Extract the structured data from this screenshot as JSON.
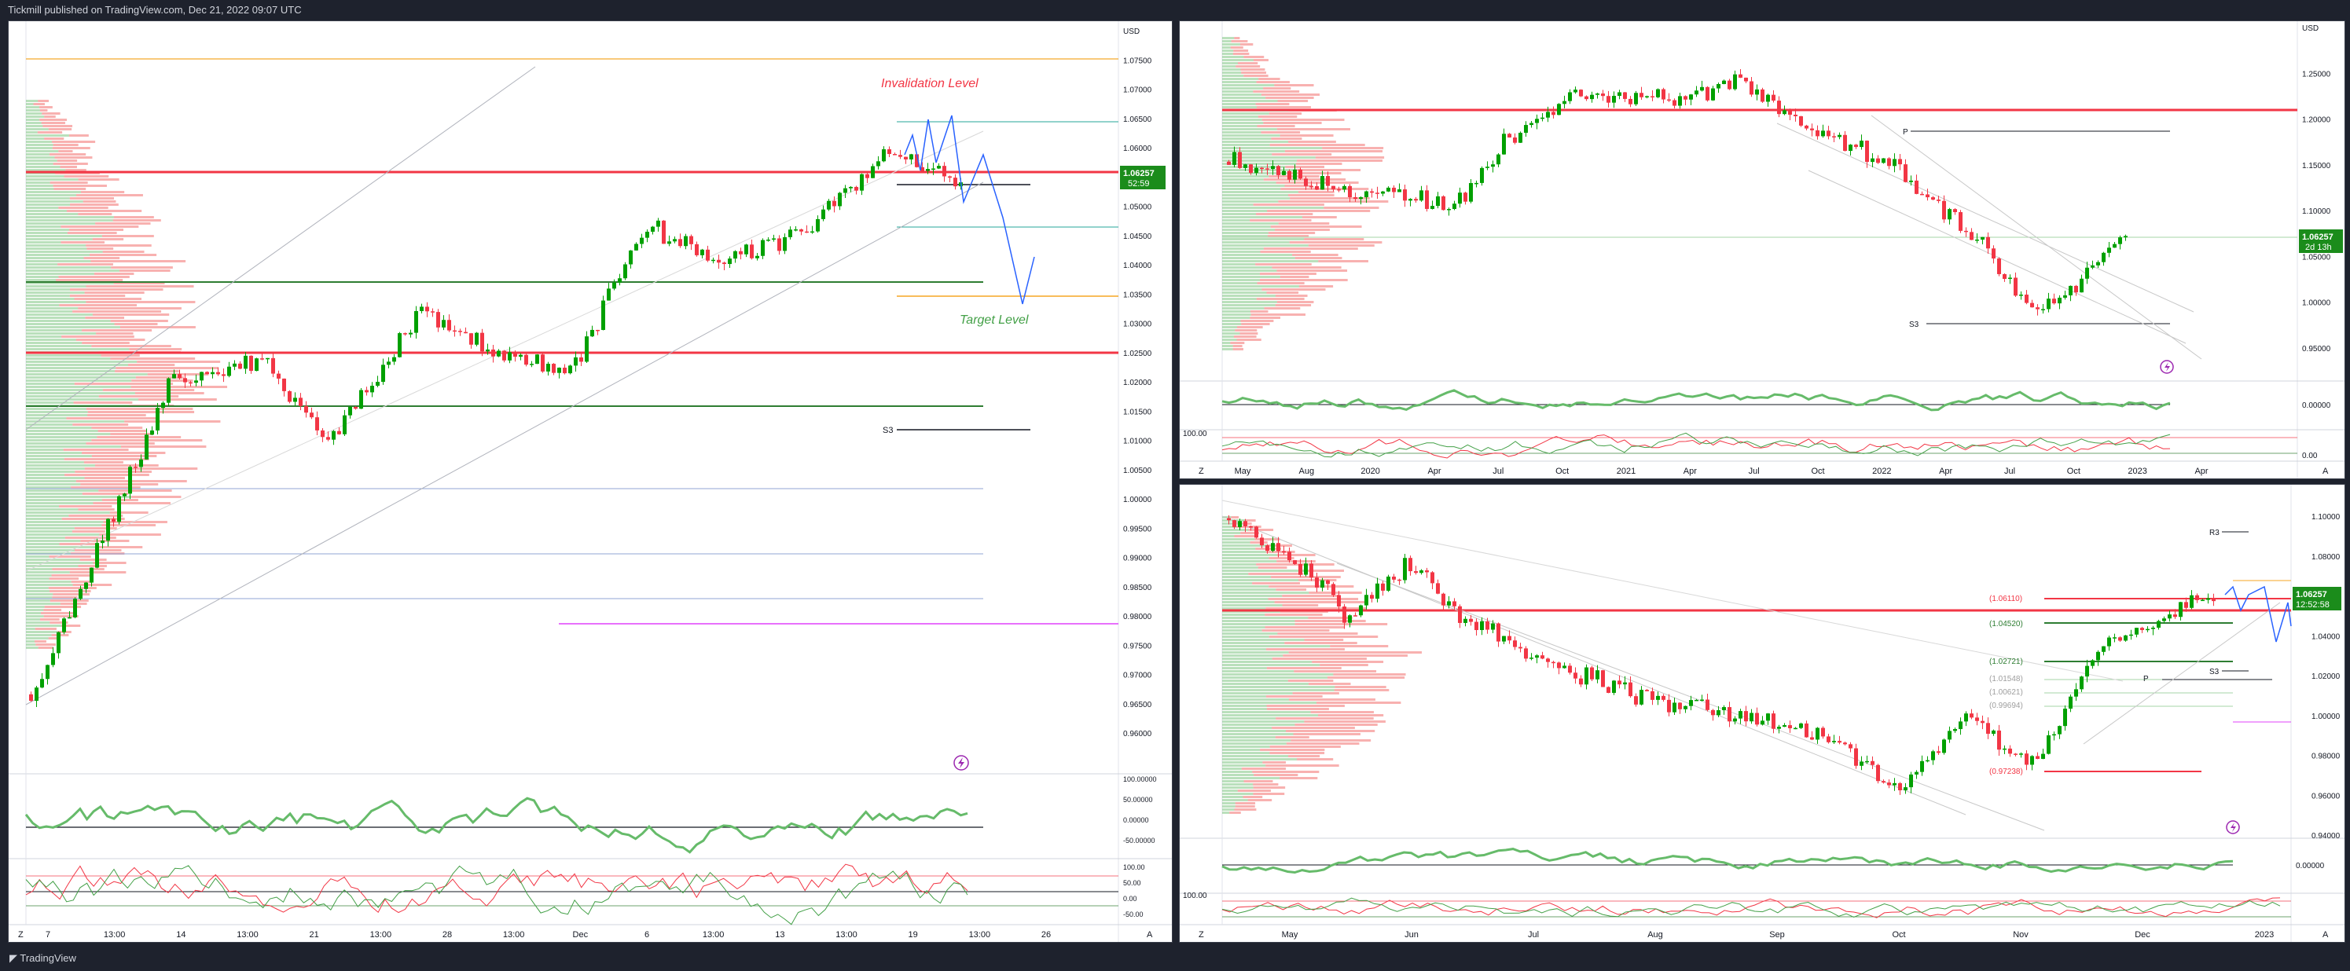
{
  "header": {
    "publisher_text": "Tickmill published on TradingView.com, Dec 21, 2022 09:07 UTC"
  },
  "footer": {
    "logo_text": "TradingView"
  },
  "colors": {
    "bull": "#089981",
    "bull_candle": "#00a000",
    "bear": "#f23645",
    "accent_blue": "#2962ff",
    "label_green": "#1b8c1b",
    "magenta": "#e040fb",
    "orange": "#f5a623"
  },
  "panels": {
    "left": {
      "price_axis": [
        "USD",
        "1.07500",
        "1.07000",
        "1.06500",
        "1.06000",
        "1.05500",
        "1.05000",
        "1.04500",
        "1.04000",
        "1.03500",
        "1.03000",
        "1.02500",
        "1.02000",
        "1.01500",
        "1.01000",
        "1.00500",
        "1.00000",
        "0.99500",
        "0.99000",
        "0.98500",
        "0.98000",
        "0.97500",
        "0.97000",
        "0.96500",
        "0.96000"
      ],
      "time_axis": [
        "7",
        "13:00",
        "14",
        "13:00",
        "21",
        "13:00",
        "28",
        "13:00",
        "Dec",
        "6",
        "13:00",
        "13",
        "13:00",
        "19",
        "13:00",
        "26"
      ],
      "price_tag": {
        "price": "1.06257",
        "countdown": "52:59"
      },
      "labels": {
        "invalidation": "Invalidation Level",
        "target": "Target Level",
        "s3": "S3"
      },
      "osc1_axis": [
        "100.00000",
        "50.00000",
        "0.00000",
        "-50.00000"
      ],
      "osc2_axis": [
        "100.00",
        "50.00",
        "0.00",
        "-50.00"
      ],
      "corner_left": "Z",
      "corner_right": "A"
    },
    "top_right": {
      "price_axis": [
        "USD",
        "1.25000",
        "1.20000",
        "1.15000",
        "1.10000",
        "1.05000",
        "1.00000",
        "0.95000"
      ],
      "time_axis": [
        "May",
        "Aug",
        "2020",
        "Apr",
        "Jul",
        "Oct",
        "2021",
        "Apr",
        "Jul",
        "Oct",
        "2022",
        "Apr",
        "Jul",
        "Oct",
        "2023",
        "Apr"
      ],
      "price_tag": {
        "price": "1.06257",
        "countdown": "2d 13h"
      },
      "labels": {
        "p": "P",
        "s3": "S3"
      },
      "osc1_axis": [
        "0.00000"
      ],
      "osc2_axis": [
        "100.00",
        "0.00"
      ],
      "corner_left": "Z",
      "corner_right": "A"
    },
    "bottom_right": {
      "price_axis": [
        "1.10000",
        "1.08000",
        "1.06000",
        "1.04000",
        "1.02000",
        "1.00000",
        "0.98000",
        "0.96000",
        "0.94000"
      ],
      "time_axis": [
        "May",
        "Jun",
        "Jul",
        "Aug",
        "Sep",
        "Oct",
        "Nov",
        "Dec",
        "2023"
      ],
      "price_tag": {
        "price": "1.06257",
        "countdown": "12:52:58"
      },
      "fib_labels": [
        "(1.06110)",
        "(1.04520)",
        "(1.02721)",
        "(1.01548)",
        "(1.00621)",
        "(0.99694)",
        "(0.97238)"
      ],
      "labels": {
        "r3": "R3",
        "s3": "S3",
        "p": "P"
      },
      "osc1_axis": [
        "0.00000"
      ],
      "osc2_axis": [
        "100.00"
      ],
      "corner_left": "Z",
      "corner_right": "A"
    }
  }
}
